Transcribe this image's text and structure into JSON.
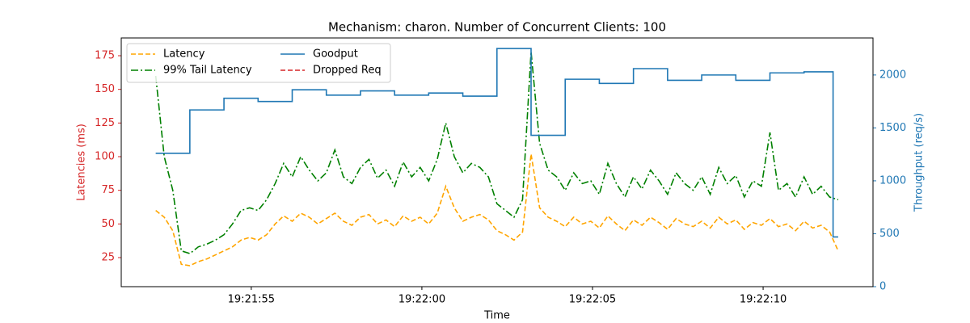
{
  "chart_data": {
    "type": "line",
    "title": "Mechanism: charon. Number of Concurrent Clients: 100",
    "x_label": "Time",
    "y_label": "Latencies (ms)",
    "y2_label": "Throughput (req/s)",
    "xlim": [
      51.19,
      73.22
    ],
    "xticks": [
      {
        "value": 55,
        "label": "19:21:55"
      },
      {
        "value": 60,
        "label": "19:22:00"
      },
      {
        "value": 65,
        "label": "19:22:05"
      },
      {
        "value": 70,
        "label": "19:22:10"
      }
    ],
    "ylim": [
      3.4,
      188.2
    ],
    "yticks": [
      25,
      50,
      75,
      100,
      125,
      150,
      175
    ],
    "y2lim": [
      0,
      2350
    ],
    "y2ticks": [
      0,
      500,
      1000,
      1500,
      2000
    ],
    "y_label_color": "#d62728",
    "y2_label_color": "#1f77b4",
    "x": [
      52.2,
      52.45,
      52.7,
      52.95,
      53.2,
      53.45,
      53.7,
      53.95,
      54.2,
      54.45,
      54.7,
      54.95,
      55.2,
      55.45,
      55.7,
      55.95,
      56.2,
      56.45,
      56.7,
      56.95,
      57.2,
      57.45,
      57.7,
      57.95,
      58.2,
      58.45,
      58.7,
      58.95,
      59.2,
      59.45,
      59.7,
      59.95,
      60.2,
      60.45,
      60.7,
      60.95,
      61.2,
      61.45,
      61.7,
      61.95,
      62.2,
      62.45,
      62.7,
      62.95,
      63.2,
      63.45,
      63.7,
      63.95,
      64.2,
      64.45,
      64.7,
      64.95,
      65.2,
      65.45,
      65.7,
      65.95,
      66.2,
      66.45,
      66.7,
      66.95,
      67.2,
      67.45,
      67.7,
      67.95,
      68.2,
      68.45,
      68.7,
      68.95,
      69.2,
      69.45,
      69.7,
      69.95,
      70.2,
      70.45,
      70.7,
      70.95,
      71.2,
      71.45,
      71.7,
      71.95,
      72.2
    ],
    "series": [
      {
        "name": "Latency",
        "color": "#ffa500",
        "style": "dashed",
        "axis": "y",
        "values": [
          60,
          55,
          45,
          20,
          19,
          22,
          24,
          27,
          30,
          33,
          38,
          40,
          38,
          42,
          50,
          56,
          52,
          58,
          55,
          50,
          54,
          58,
          52,
          49,
          55,
          57,
          50,
          53,
          48,
          56,
          52,
          55,
          50,
          58,
          78,
          62,
          52,
          55,
          57,
          53,
          45,
          42,
          38,
          44,
          102,
          62,
          55,
          52,
          48,
          55,
          50,
          52,
          47,
          56,
          50,
          45,
          53,
          49,
          55,
          51,
          46,
          54,
          50,
          48,
          52,
          47,
          55,
          50,
          53,
          46,
          51,
          49,
          54,
          48,
          50,
          45,
          52,
          47,
          49,
          44,
          30
        ]
      },
      {
        "name": "99% Tail Latency",
        "color": "#008000",
        "style": "dashdot",
        "axis": "y",
        "values": [
          160,
          100,
          75,
          30,
          28,
          33,
          35,
          38,
          42,
          50,
          60,
          62,
          60,
          68,
          80,
          95,
          85,
          100,
          90,
          82,
          88,
          105,
          85,
          80,
          92,
          98,
          84,
          90,
          78,
          96,
          85,
          92,
          82,
          98,
          125,
          100,
          88,
          95,
          92,
          85,
          65,
          60,
          55,
          68,
          178,
          110,
          90,
          85,
          75,
          88,
          80,
          82,
          72,
          95,
          80,
          70,
          85,
          76,
          90,
          82,
          72,
          88,
          80,
          75,
          85,
          72,
          92,
          80,
          86,
          70,
          82,
          78,
          118,
          75,
          80,
          70,
          85,
          72,
          78,
          70,
          68
        ]
      },
      {
        "name": "Goodput",
        "color": "#1f77b4",
        "style": "steps",
        "axis": "y2",
        "x": [
          52.2,
          53.2,
          54.2,
          55.2,
          56.2,
          57.2,
          58.2,
          59.2,
          60.2,
          61.2,
          62.2,
          63.2,
          64.2,
          65.2,
          66.2,
          67.2,
          68.2,
          69.2,
          70.2,
          71.2,
          72.05,
          72.2
        ],
        "values": [
          1260,
          1670,
          1780,
          1750,
          1860,
          1810,
          1850,
          1810,
          1830,
          1800,
          2250,
          1430,
          1960,
          1920,
          2060,
          1950,
          2000,
          1950,
          2020,
          2030,
          470,
          470
        ]
      },
      {
        "name": "Dropped Req",
        "color": "#d62728",
        "style": "dashed",
        "axis": "y",
        "values": [
          null,
          null,
          null,
          null,
          null,
          null,
          null,
          null,
          null,
          null,
          null,
          null,
          null,
          null,
          null,
          null,
          null,
          null,
          null,
          null,
          null,
          null,
          null,
          null,
          null,
          null,
          null,
          null,
          null,
          null,
          null,
          null,
          null,
          null,
          null,
          null,
          null,
          null,
          null,
          null,
          null,
          null,
          null,
          null,
          null,
          null,
          null,
          null,
          null,
          null,
          null,
          null,
          null,
          null,
          null,
          null,
          null,
          null,
          null,
          null,
          null,
          null,
          null,
          null,
          null,
          null,
          null,
          null,
          null,
          null,
          null,
          null,
          null,
          null,
          null,
          null,
          null,
          null,
          null,
          null,
          null
        ]
      }
    ]
  }
}
